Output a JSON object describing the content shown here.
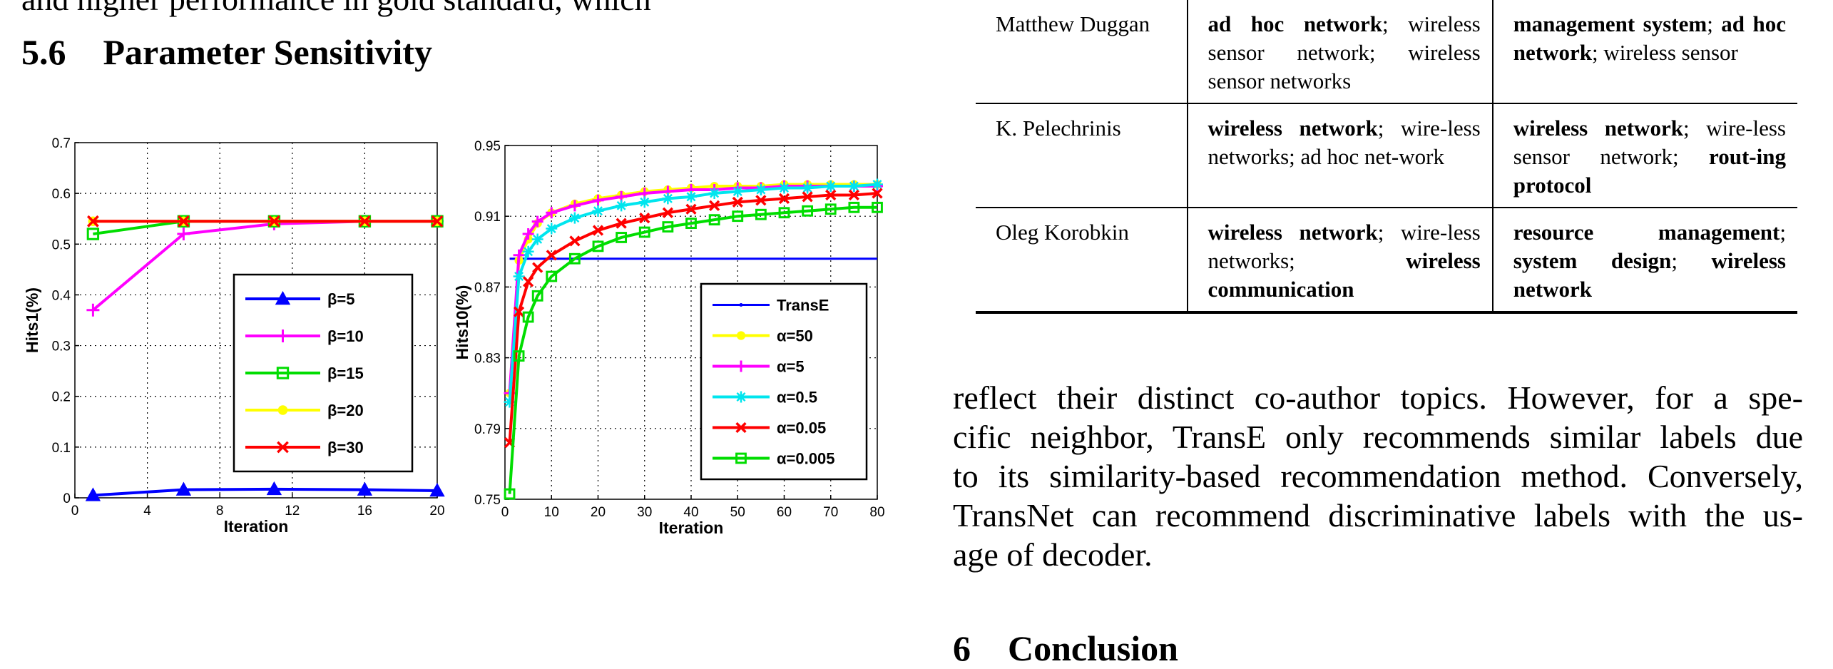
{
  "top_text": "and higher performance in gold standard, which",
  "section": {
    "number": "5.6",
    "title": "Parameter Sensitivity"
  },
  "chart_data": [
    {
      "type": "line",
      "xlabel": "Iteration",
      "ylabel": "Hits1(%)",
      "xlim": [
        0,
        20
      ],
      "ylim": [
        0,
        0.7
      ],
      "xticks": [
        0,
        4,
        8,
        12,
        16,
        20
      ],
      "yticks": [
        0,
        0.1,
        0.2,
        0.3,
        0.4,
        0.5,
        0.6,
        0.7
      ],
      "grid": true,
      "legend_position": "center-right",
      "series": [
        {
          "name": "β=5",
          "color": "#0000ff",
          "marker": "triangle",
          "x": [
            1,
            6,
            11,
            16,
            20
          ],
          "y": [
            0.005,
            0.016,
            0.017,
            0.016,
            0.014
          ]
        },
        {
          "name": "β=10",
          "color": "#ff00ff",
          "marker": "plus",
          "x": [
            1,
            6,
            11,
            16,
            20
          ],
          "y": [
            0.37,
            0.52,
            0.54,
            0.545,
            0.545
          ]
        },
        {
          "name": "β=15",
          "color": "#00dd00",
          "marker": "square",
          "x": [
            1,
            6,
            11,
            16,
            20
          ],
          "y": [
            0.52,
            0.545,
            0.545,
            0.545,
            0.545
          ]
        },
        {
          "name": "β=20",
          "color": "#ffff00",
          "marker": "circle",
          "x": [
            1,
            6,
            11,
            16,
            20
          ],
          "y": [
            0.545,
            0.545,
            0.545,
            0.545,
            0.545
          ]
        },
        {
          "name": "β=30",
          "color": "#ff0000",
          "marker": "x",
          "x": [
            1,
            6,
            11,
            16,
            20
          ],
          "y": [
            0.545,
            0.545,
            0.545,
            0.545,
            0.545
          ]
        }
      ]
    },
    {
      "type": "line",
      "xlabel": "Iteration",
      "ylabel": "Hits10(%)",
      "xlim": [
        0,
        80
      ],
      "ylim": [
        0.75,
        0.95
      ],
      "xticks": [
        0,
        10,
        20,
        30,
        40,
        50,
        60,
        70,
        80
      ],
      "yticks": [
        0.75,
        0.79,
        0.83,
        0.87,
        0.91,
        0.95
      ],
      "grid": true,
      "legend_position": "bottom-right",
      "series": [
        {
          "name": "TransE",
          "color": "#0000ff",
          "marker": "dot",
          "x": [
            1,
            10,
            20,
            30,
            40,
            50,
            60,
            70,
            80
          ],
          "y": [
            0.886,
            0.886,
            0.886,
            0.886,
            0.886,
            0.886,
            0.886,
            0.886,
            0.886
          ]
        },
        {
          "name": "α=50",
          "color": "#ffff00",
          "marker": "circle",
          "x": [
            1,
            3,
            5,
            7,
            10,
            15,
            20,
            25,
            30,
            35,
            40,
            45,
            50,
            55,
            60,
            65,
            70,
            75,
            80
          ],
          "y": [
            0.81,
            0.885,
            0.897,
            0.906,
            0.912,
            0.917,
            0.92,
            0.922,
            0.924,
            0.925,
            0.926,
            0.927,
            0.927,
            0.927,
            0.928,
            0.928,
            0.928,
            0.928,
            0.928
          ]
        },
        {
          "name": "α=5",
          "color": "#ff00ff",
          "marker": "plus",
          "x": [
            1,
            3,
            5,
            7,
            10,
            15,
            20,
            25,
            30,
            35,
            40,
            45,
            50,
            55,
            60,
            65,
            70,
            75,
            80
          ],
          "y": [
            0.81,
            0.888,
            0.9,
            0.907,
            0.912,
            0.916,
            0.919,
            0.921,
            0.923,
            0.924,
            0.925,
            0.925,
            0.926,
            0.926,
            0.927,
            0.927,
            0.927,
            0.927,
            0.927
          ]
        },
        {
          "name": "α=0.5",
          "color": "#00e5ee",
          "marker": "star",
          "x": [
            1,
            3,
            5,
            7,
            10,
            15,
            20,
            25,
            30,
            35,
            40,
            45,
            50,
            55,
            60,
            65,
            70,
            75,
            80
          ],
          "y": [
            0.805,
            0.876,
            0.89,
            0.897,
            0.903,
            0.909,
            0.913,
            0.916,
            0.918,
            0.92,
            0.921,
            0.923,
            0.924,
            0.925,
            0.926,
            0.926,
            0.927,
            0.927,
            0.928
          ]
        },
        {
          "name": "α=0.05",
          "color": "#ff0000",
          "marker": "x",
          "x": [
            1,
            3,
            5,
            7,
            10,
            15,
            20,
            25,
            30,
            35,
            40,
            45,
            50,
            55,
            60,
            65,
            70,
            75,
            80
          ],
          "y": [
            0.782,
            0.856,
            0.873,
            0.881,
            0.888,
            0.896,
            0.902,
            0.906,
            0.909,
            0.912,
            0.914,
            0.916,
            0.918,
            0.919,
            0.92,
            0.921,
            0.922,
            0.922,
            0.923
          ]
        },
        {
          "name": "α=0.005",
          "color": "#00dd00",
          "marker": "square",
          "x": [
            1,
            3,
            5,
            7,
            10,
            15,
            20,
            25,
            30,
            35,
            40,
            45,
            50,
            55,
            60,
            65,
            70,
            75,
            80
          ],
          "y": [
            0.753,
            0.831,
            0.853,
            0.865,
            0.876,
            0.886,
            0.893,
            0.898,
            0.901,
            0.904,
            0.906,
            0.908,
            0.91,
            0.911,
            0.912,
            0.913,
            0.914,
            0.915,
            0.915
          ]
        }
      ]
    }
  ],
  "table": {
    "rows": [
      {
        "name": "Matthew Duggan",
        "col2": [
          {
            "t": "ad hoc network",
            "b": true
          },
          {
            "t": "; wireless sensor network; wireless sensor networks",
            "b": false
          }
        ],
        "col3": [
          {
            "t": "management system",
            "b": true
          },
          {
            "t": "; ",
            "b": false
          },
          {
            "t": "ad hoc network",
            "b": true
          },
          {
            "t": "; wireless sensor",
            "b": false
          }
        ]
      },
      {
        "name": "K. Pelechrinis",
        "col2": [
          {
            "t": "wireless network",
            "b": true
          },
          {
            "t": "; wire-less networks; ad hoc net-work",
            "b": false
          }
        ],
        "col3": [
          {
            "t": "wireless network",
            "b": true
          },
          {
            "t": "; wire-less sensor network; ",
            "b": false
          },
          {
            "t": "rout-ing protocol",
            "b": true
          }
        ]
      },
      {
        "name": "Oleg Korobkin",
        "col2": [
          {
            "t": "wireless network",
            "b": true
          },
          {
            "t": "; wire-less networks; ",
            "b": false
          },
          {
            "t": "wireless communication",
            "b": true
          }
        ],
        "col3": [
          {
            "t": "resource management",
            "b": true
          },
          {
            "t": "; ",
            "b": false
          },
          {
            "t": "system design",
            "b": true
          },
          {
            "t": "; ",
            "b": false
          },
          {
            "t": "wireless network",
            "b": true
          }
        ]
      }
    ]
  },
  "paragraph_lines": [
    "reflect their distinct co-author topics.  However, for a spe-",
    "cific neighbor, TransE only recommends similar labels due",
    "to its similarity-based recommendation method. Conversely,",
    "TransNet can recommend discriminative labels with the us-",
    "age of decoder."
  ],
  "next_section": {
    "number": "6",
    "title": "Conclusion"
  }
}
